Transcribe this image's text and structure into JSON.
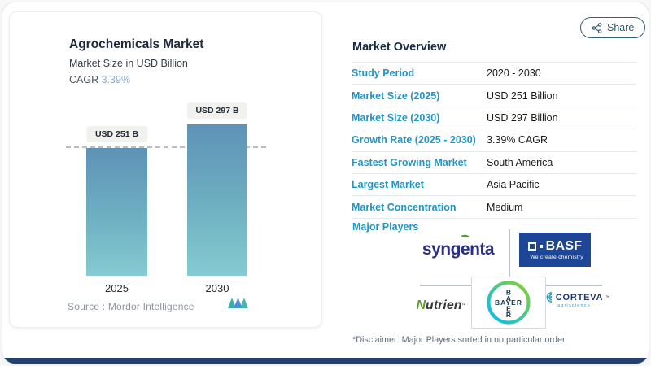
{
  "share": {
    "label": "Share"
  },
  "chart_panel": {
    "title": "Agrochemicals Market",
    "subtitle": "Market Size in USD Billion",
    "cagr_label": "CAGR",
    "cagr_value": "3.39%",
    "source": "Source :  Mordor Intelligence"
  },
  "chart_data": {
    "type": "bar",
    "title": "Agrochemicals Market",
    "subtitle": "Market Size in USD Billion",
    "unit": "USD Billion",
    "categories": [
      "2025",
      "2030"
    ],
    "values": [
      251,
      297
    ],
    "bar_labels": [
      "USD 251 B",
      "USD 297 B"
    ],
    "threshold_line_value": 251,
    "cagr": "3.39%",
    "ylim": [
      0,
      297
    ],
    "grid": false,
    "bar_gradient": [
      "#5e92b6",
      "#85cbd1"
    ]
  },
  "overview": {
    "heading": "Market Overview",
    "rows": [
      {
        "label": "Study Period",
        "value": "2020 - 2030"
      },
      {
        "label": "Market Size (2025)",
        "value": "USD 251 Billion"
      },
      {
        "label": "Market Size (2030)",
        "value": "USD 297 Billion"
      },
      {
        "label": "Growth Rate (2025 - 2030)",
        "value": "3.39% CAGR"
      },
      {
        "label": "Fastest Growing Market",
        "value": "South America"
      },
      {
        "label": "Largest Market",
        "value": "Asia Pacific"
      },
      {
        "label": "Market Concentration",
        "value": "Medium"
      }
    ],
    "major_players_label": "Major Players",
    "major_players": [
      "Syngenta",
      "BASF",
      "Nutrien",
      "Bayer",
      "Corteva"
    ],
    "disclaimer": "*Disclaimer: Major Players sorted in no particular order"
  },
  "logos": {
    "syngenta_pre": "syng",
    "syngenta_e": "e",
    "syngenta_post": "nta",
    "basf_name": "BASF",
    "basf_tagline": "We create chemistry",
    "nutrien_initial": "N",
    "nutrien_rest": "utrien",
    "bayer_horizontal": "BAYER",
    "bayer_vertical": [
      "B",
      "A",
      "E",
      "R"
    ],
    "corteva_name": "CORTEVA",
    "corteva_sub": "agriscience",
    "trademark": "™"
  },
  "colors": {
    "accent_label_blue": "#2095c6",
    "cagr_light_blue": "#85aed3",
    "bar_top": "#5e92b6",
    "bar_bottom": "#85cbd1",
    "dashed_line": "#bcbdbe",
    "bottom_strip_navy": "#25406b",
    "share_border": "#2e6375",
    "basf_blue": "#1d4697",
    "syngenta_navy": "#2b2e83",
    "bayer_green": "#89d329",
    "bayer_blue": "#00bcff",
    "corteva_teal": "#2f9db8"
  }
}
